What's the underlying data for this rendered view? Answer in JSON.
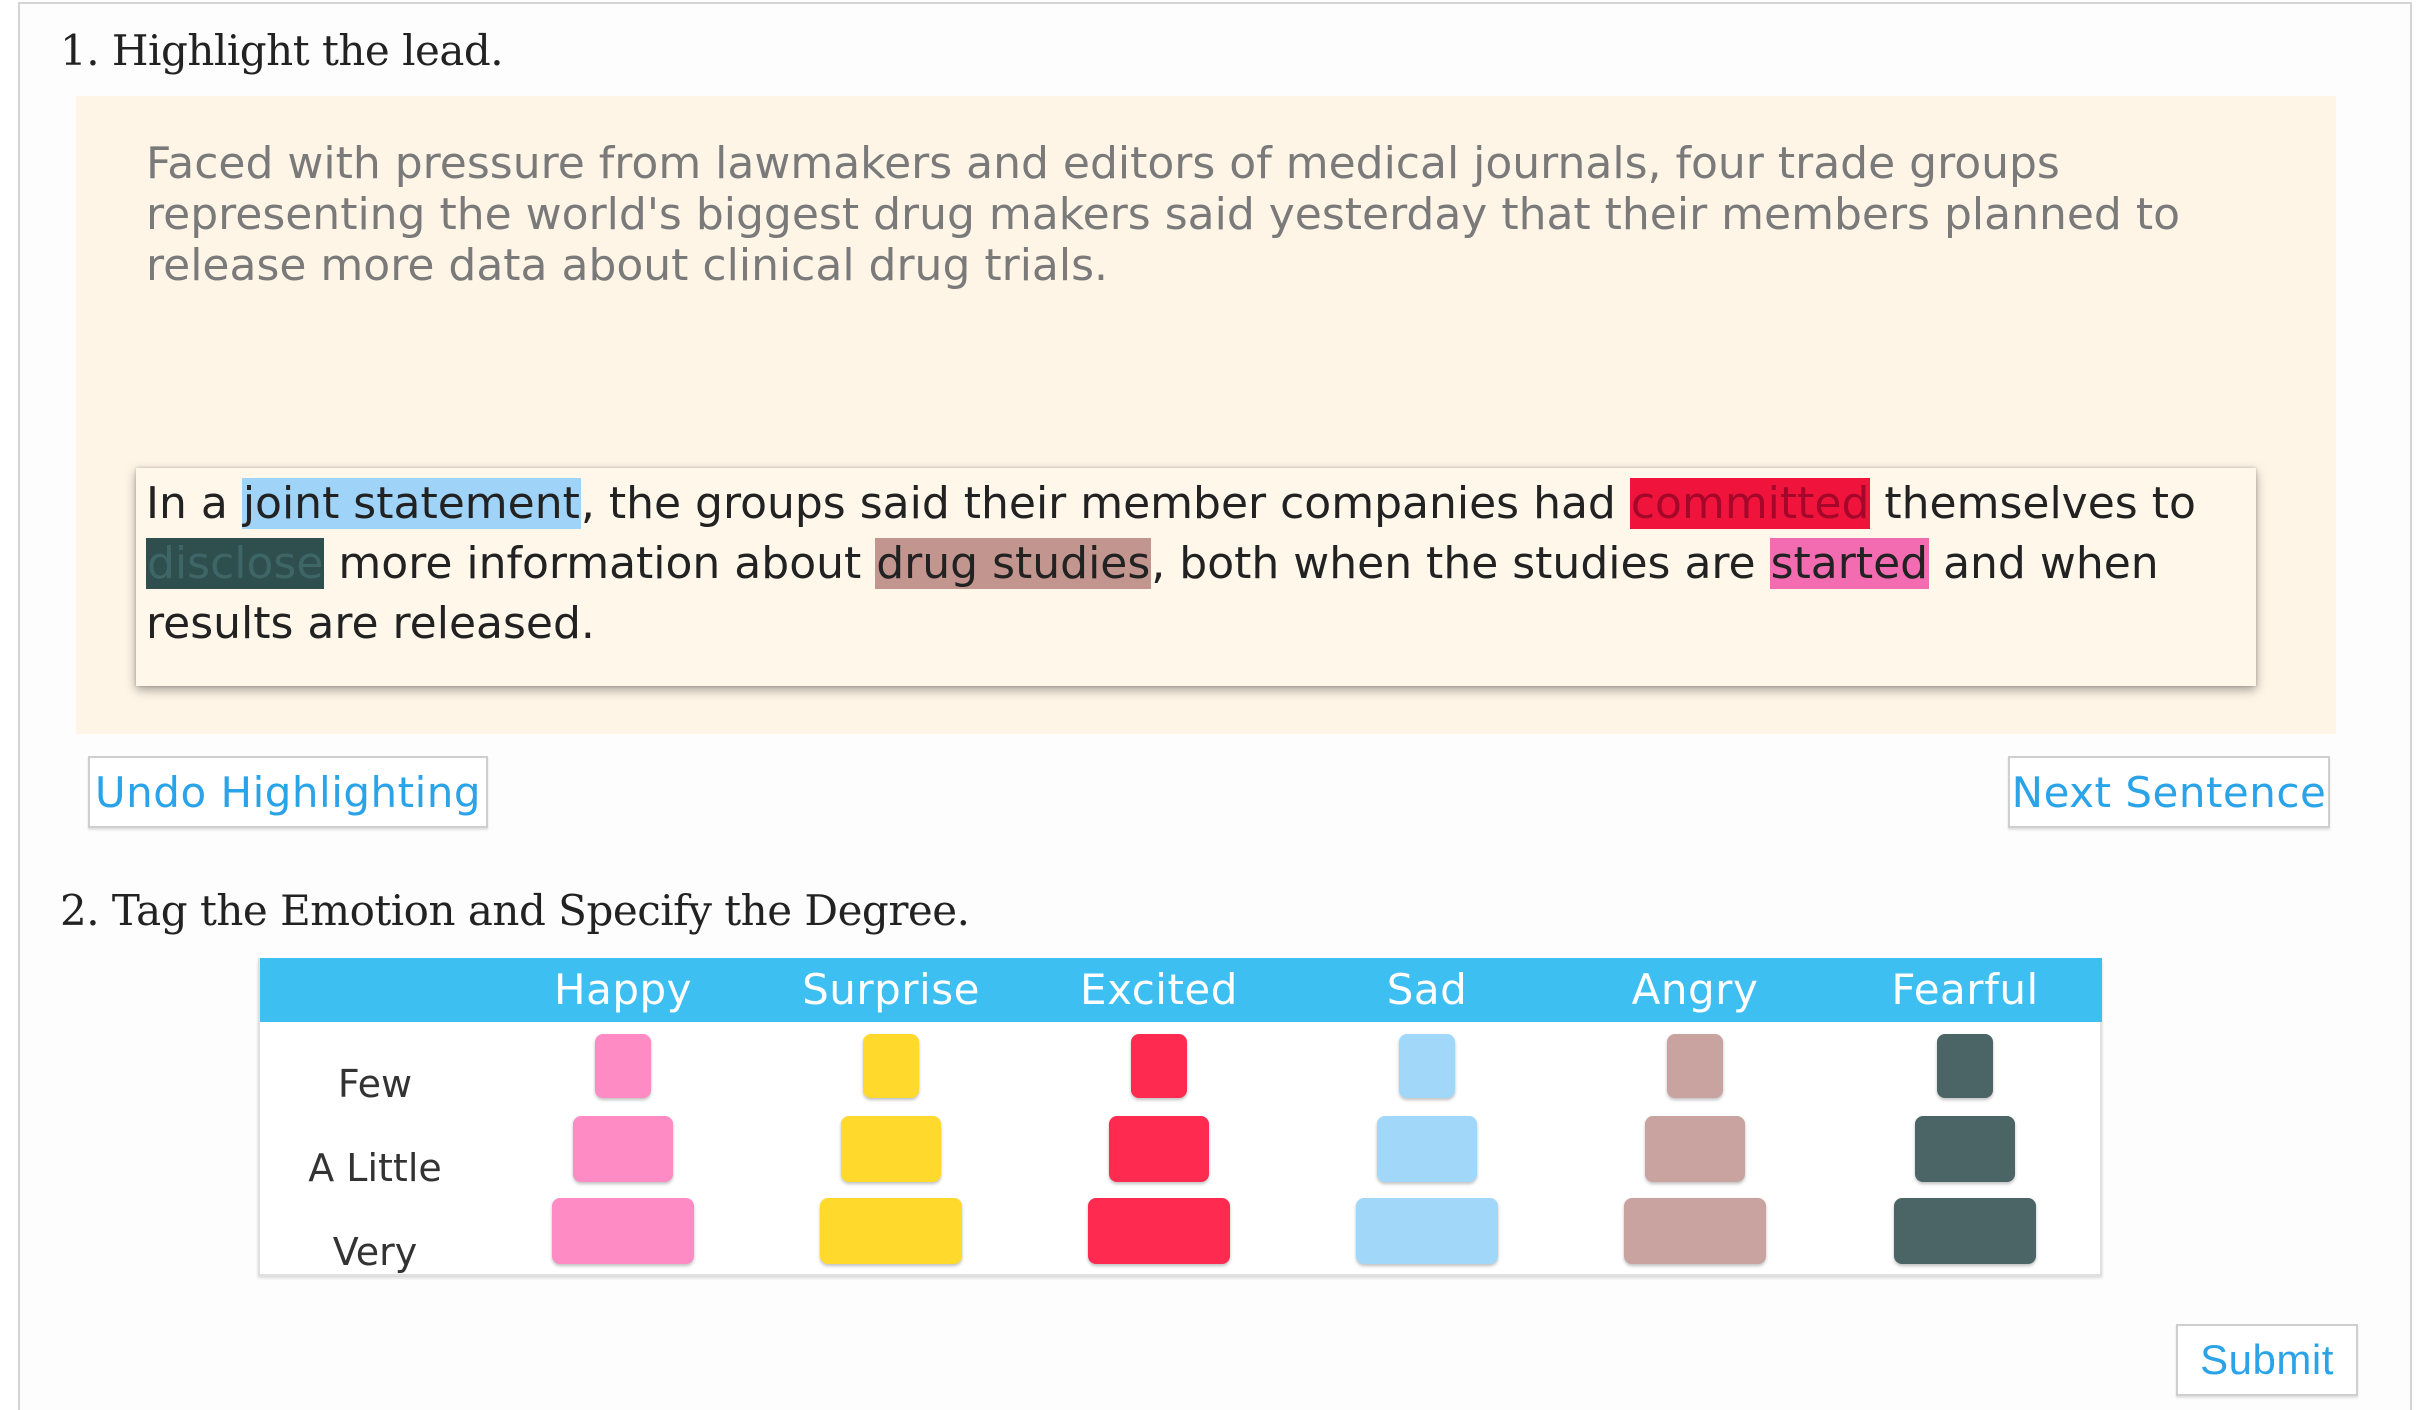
{
  "section1": {
    "heading": "1. Highlight the lead."
  },
  "lead": {
    "paragraph": "Faced with pressure from lawmakers and editors of medical journals, four trade groups representing the world's biggest drug makers said yesterday that their members planned to release more data about clinical drug trials."
  },
  "sentence": {
    "segments": [
      {
        "text": "In a ",
        "highlight": null
      },
      {
        "text": "joint statement",
        "highlight": "#9fd3f8"
      },
      {
        "text": ", the groups said their member companies had ",
        "highlight": null
      },
      {
        "text": "committed",
        "highlight": "#f0143c"
      },
      {
        "text": " themselves to ",
        "highlight": null
      },
      {
        "text": "disclose",
        "highlight": "#2f4f4f"
      },
      {
        "text": " more information about ",
        "highlight": null
      },
      {
        "text": "drug studies",
        "highlight": "#c2958e"
      },
      {
        "text": ", both when the studies are ",
        "highlight": null
      },
      {
        "text": "started",
        "highlight": "#f36cb1"
      },
      {
        "text": " and when results are released.",
        "highlight": null
      }
    ]
  },
  "buttons": {
    "undo_label": "Undo Highlighting",
    "next_label": "Next Sentence",
    "submit_label": "Submit"
  },
  "section2": {
    "heading": "2. Tag the Emotion and Specify the Degree."
  },
  "emotion_table": {
    "header_color": "#3ebff2",
    "emotions": [
      {
        "label": "Happy",
        "color": "#fe8bc3"
      },
      {
        "label": "Surprise",
        "color": "#ffd92b"
      },
      {
        "label": "Excited",
        "color": "#fe2a50"
      },
      {
        "label": "Sad",
        "color": "#a1d8fa"
      },
      {
        "label": "Angry",
        "color": "#c8a3a0"
      },
      {
        "label": "Fearful",
        "color": "#4b6465"
      }
    ],
    "degrees": [
      {
        "label": "Few"
      },
      {
        "label": "A Little"
      },
      {
        "label": "Very"
      }
    ]
  }
}
